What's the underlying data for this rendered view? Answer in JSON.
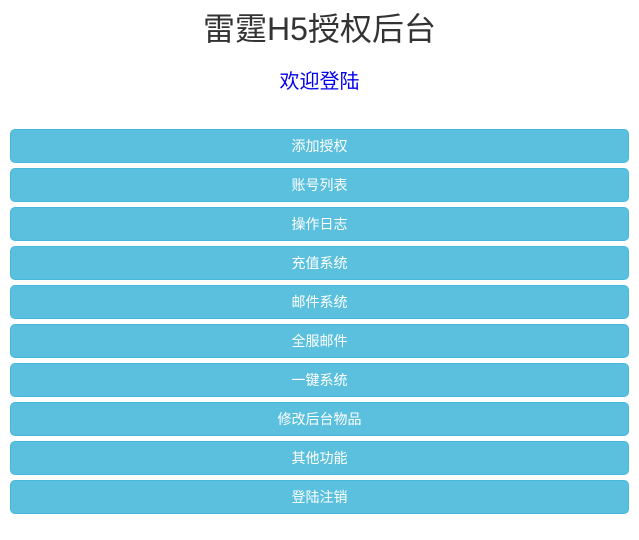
{
  "header": {
    "title": "雷霆H5授权后台",
    "welcome_link": "欢迎登陆"
  },
  "menu": {
    "items": [
      {
        "label": "添加授权"
      },
      {
        "label": "账号列表"
      },
      {
        "label": "操作日志"
      },
      {
        "label": "充值系统"
      },
      {
        "label": "邮件系统"
      },
      {
        "label": "全服邮件"
      },
      {
        "label": "一键系统"
      },
      {
        "label": "修改后台物品"
      },
      {
        "label": "其他功能"
      },
      {
        "label": "登陆注销"
      }
    ]
  },
  "colors": {
    "button_background": "#5bc0de",
    "button_border": "#46b8da",
    "button_text": "#ffffff",
    "title_text": "#333333",
    "welcome_link_text": "#0000ee",
    "page_background": "#ffffff"
  }
}
